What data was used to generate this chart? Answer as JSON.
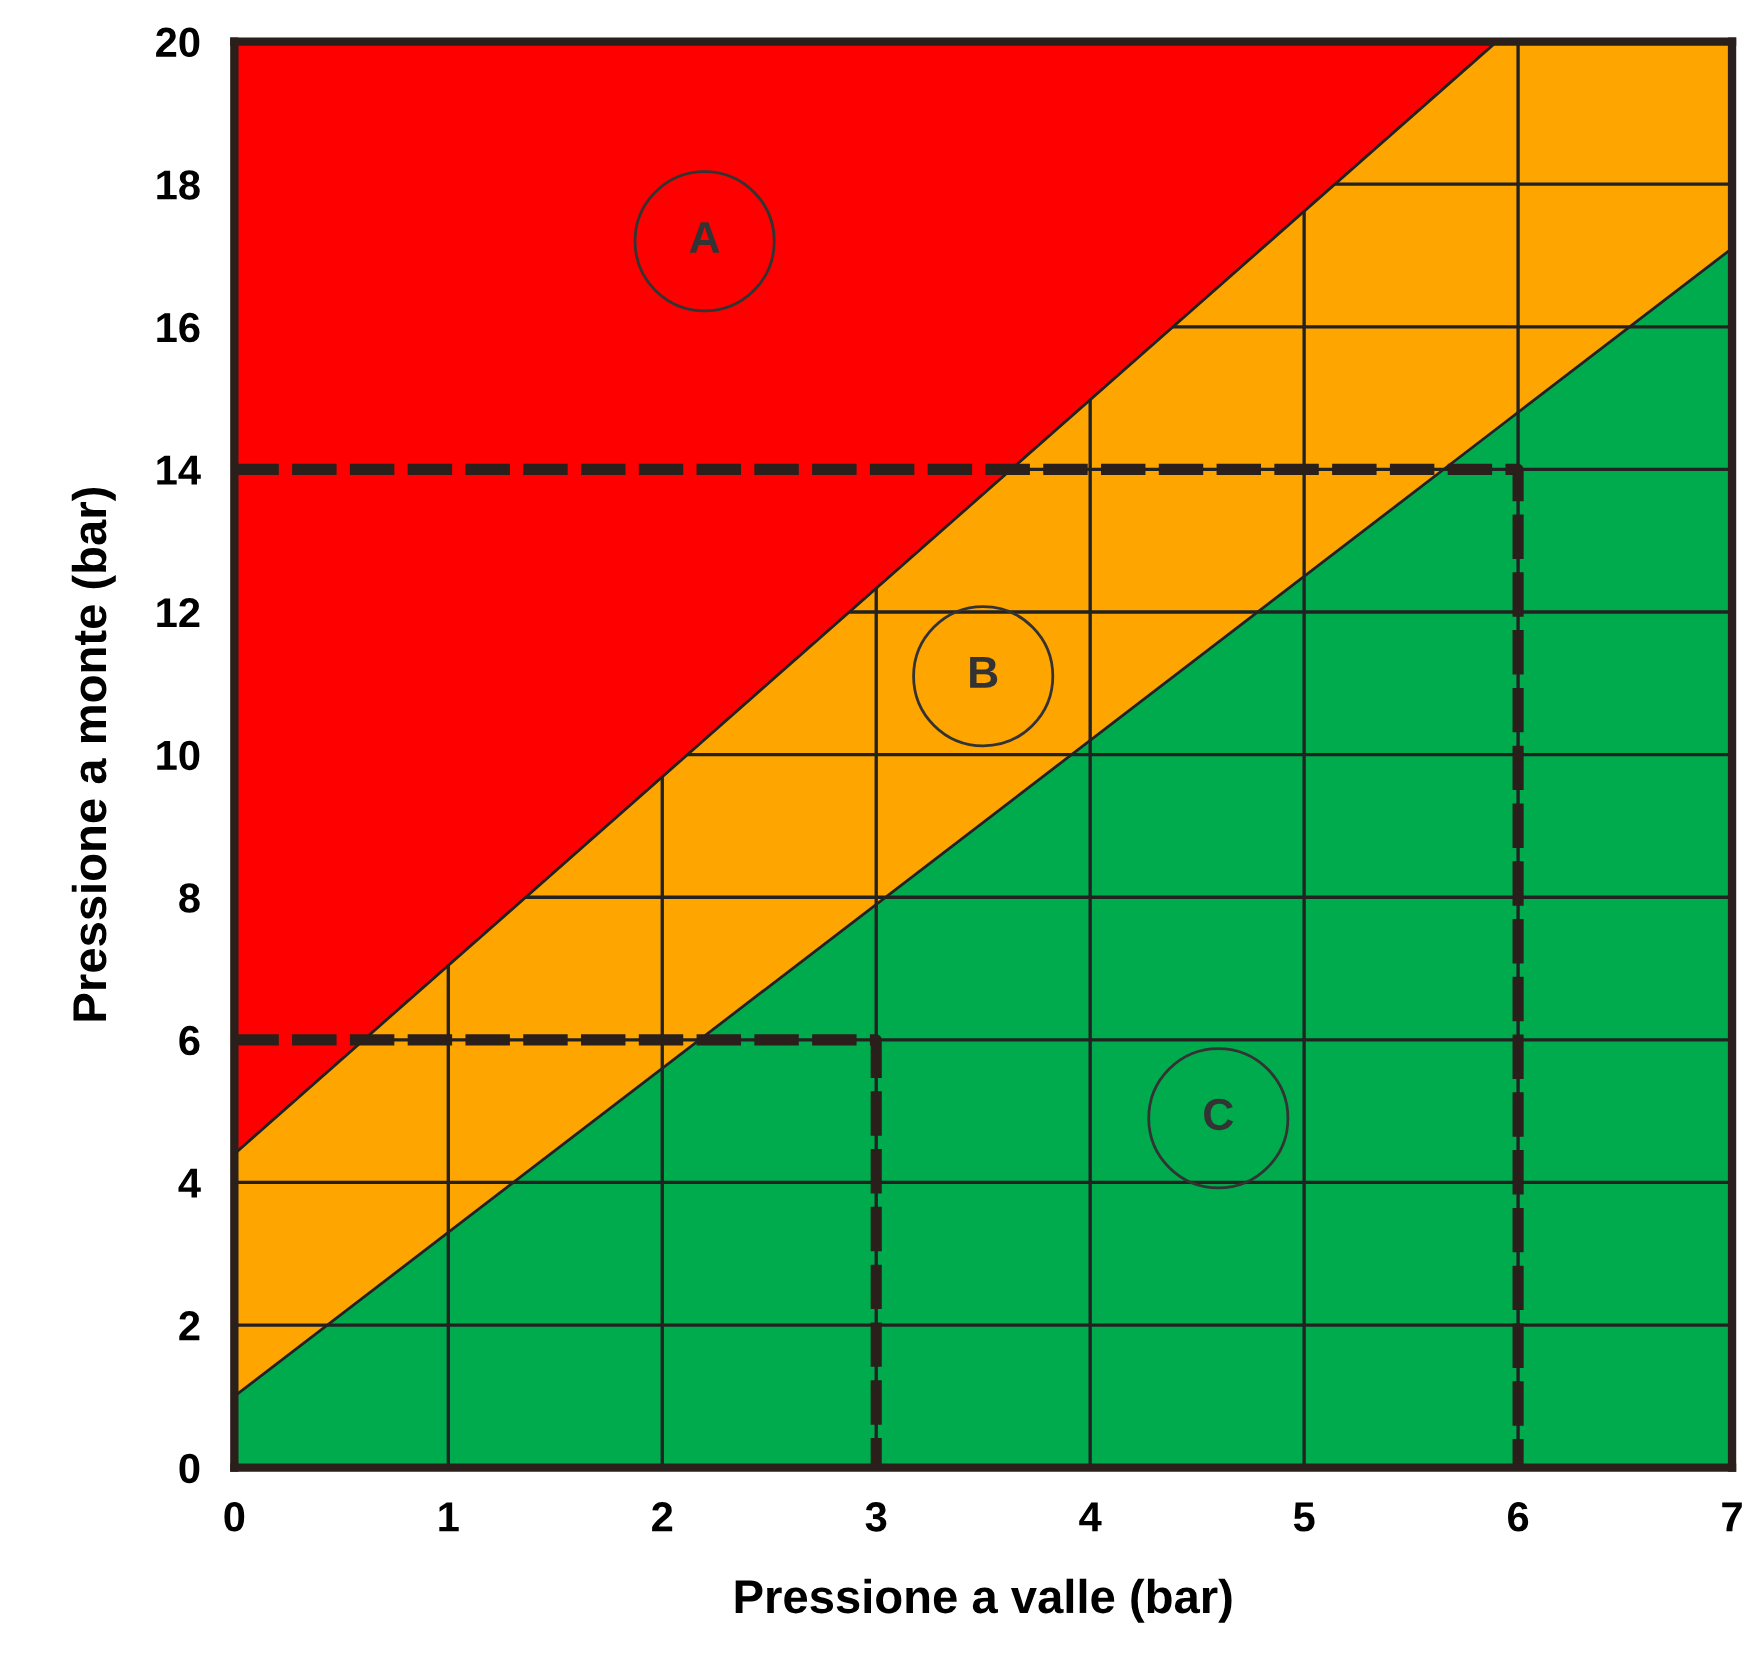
{
  "chart_data": {
    "type": "area",
    "xlabel": "Pressione a valle (bar)",
    "ylabel": "Pressione a monte (bar)",
    "xlim": [
      0,
      7
    ],
    "ylim": [
      0,
      20
    ],
    "xticks": [
      0,
      1,
      2,
      3,
      4,
      5,
      6,
      7
    ],
    "yticks": [
      0,
      2,
      4,
      6,
      8,
      10,
      12,
      14,
      16,
      18,
      20
    ],
    "grid": true,
    "stacked": true,
    "series": [
      {
        "color": "#00ab4e",
        "x": [
          0,
          5.9,
          7
        ],
        "values": [
          1.0,
          14.57,
          17.1
        ]
      },
      {
        "color": "#ffa500",
        "x": [
          0,
          5.9,
          7
        ],
        "values": [
          3.4,
          5.43,
          2.9
        ]
      },
      {
        "color": "#ff0000",
        "x": [
          0,
          5.9,
          7
        ],
        "values": [
          15.6,
          0,
          0
        ]
      },
      {
        "type": "line",
        "color": "#2a1f1a",
        "line_style": "dashed",
        "x": [
          0,
          6,
          6
        ],
        "values": [
          14,
          14,
          0
        ]
      },
      {
        "type": "line",
        "color": "#2a1f1a",
        "line_style": "dashed",
        "x": [
          0,
          3,
          3
        ],
        "values": [
          6,
          6,
          0
        ]
      }
    ],
    "annotations": [
      "A",
      "B",
      "C"
    ]
  }
}
